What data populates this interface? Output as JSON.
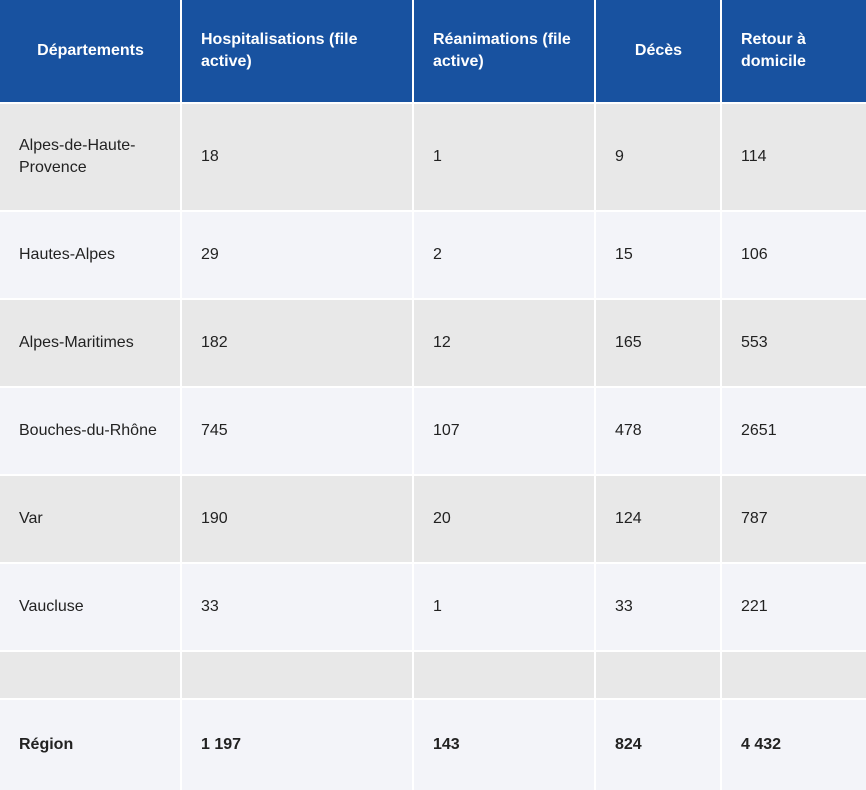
{
  "table": {
    "headers": [
      "Départements",
      "Hospitalisations (file active)",
      "Réanimations (file active)",
      "Décès",
      "Retour à domicile"
    ],
    "rows": [
      [
        "Alpes-de-Haute-Provence",
        "18",
        "1",
        "9",
        "114"
      ],
      [
        "Hautes-Alpes",
        "29",
        "2",
        "15",
        "106"
      ],
      [
        "Alpes-Maritimes",
        "182",
        "12",
        "165",
        "553"
      ],
      [
        "Bouches-du-Rhône",
        "745",
        "107",
        "478",
        "2651"
      ],
      [
        "Var",
        "190",
        "20",
        "124",
        "787"
      ],
      [
        "Vaucluse",
        "33",
        "1",
        "33",
        "221"
      ],
      [
        "",
        "",
        "",
        "",
        ""
      ]
    ],
    "total": [
      "Région",
      "1 197",
      "143",
      "824",
      "4 432"
    ]
  },
  "colors": {
    "header_bg": "#1852a0",
    "row_odd_bg": "#e8e8e8",
    "row_even_bg": "#f3f4f9"
  }
}
